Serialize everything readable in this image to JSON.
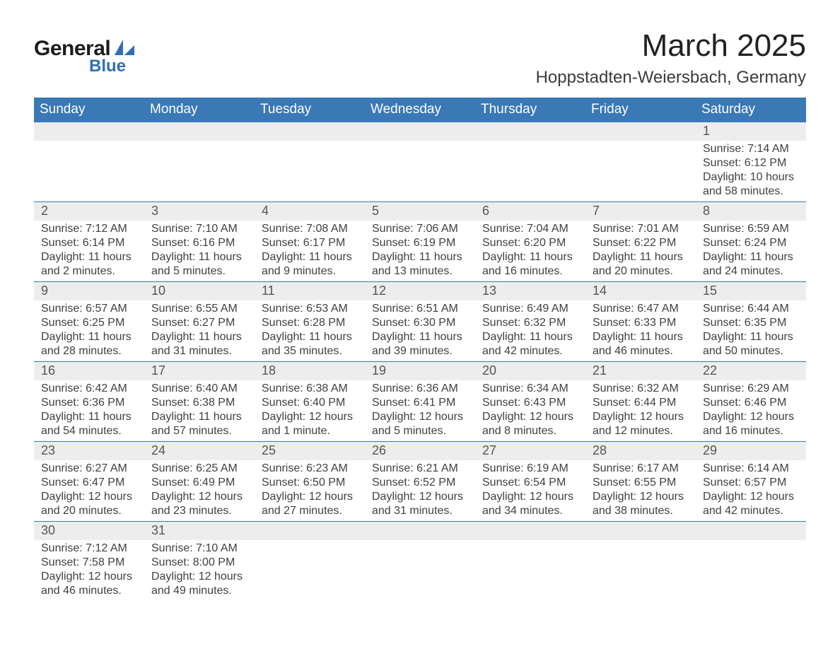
{
  "brand": {
    "name_main": "General",
    "name_accent": "Blue",
    "accent_color": "#2f6fb3",
    "text_color": "#1c1c1c"
  },
  "header": {
    "month_title": "March 2025",
    "location": "Hoppstadten-Weiersbach, Germany"
  },
  "colors": {
    "header_bg": "#3a78b6",
    "header_text": "#ffffff",
    "daynum_bg": "#ededed",
    "body_text": "#404040",
    "page_bg": "#ffffff",
    "rule": "#3a78b6"
  },
  "typography": {
    "month_title_fontsize": 44,
    "location_fontsize": 24,
    "weekday_fontsize": 19,
    "daynum_fontsize": 18,
    "detail_fontsize": 16,
    "font_family": "Arial"
  },
  "weekdays": [
    "Sunday",
    "Monday",
    "Tuesday",
    "Wednesday",
    "Thursday",
    "Friday",
    "Saturday"
  ],
  "weeks": [
    [
      null,
      null,
      null,
      null,
      null,
      null,
      {
        "n": "1",
        "sunrise": "Sunrise: 7:14 AM",
        "sunset": "Sunset: 6:12 PM",
        "d1": "Daylight: 10 hours",
        "d2": "and 58 minutes."
      }
    ],
    [
      {
        "n": "2",
        "sunrise": "Sunrise: 7:12 AM",
        "sunset": "Sunset: 6:14 PM",
        "d1": "Daylight: 11 hours",
        "d2": "and 2 minutes."
      },
      {
        "n": "3",
        "sunrise": "Sunrise: 7:10 AM",
        "sunset": "Sunset: 6:16 PM",
        "d1": "Daylight: 11 hours",
        "d2": "and 5 minutes."
      },
      {
        "n": "4",
        "sunrise": "Sunrise: 7:08 AM",
        "sunset": "Sunset: 6:17 PM",
        "d1": "Daylight: 11 hours",
        "d2": "and 9 minutes."
      },
      {
        "n": "5",
        "sunrise": "Sunrise: 7:06 AM",
        "sunset": "Sunset: 6:19 PM",
        "d1": "Daylight: 11 hours",
        "d2": "and 13 minutes."
      },
      {
        "n": "6",
        "sunrise": "Sunrise: 7:04 AM",
        "sunset": "Sunset: 6:20 PM",
        "d1": "Daylight: 11 hours",
        "d2": "and 16 minutes."
      },
      {
        "n": "7",
        "sunrise": "Sunrise: 7:01 AM",
        "sunset": "Sunset: 6:22 PM",
        "d1": "Daylight: 11 hours",
        "d2": "and 20 minutes."
      },
      {
        "n": "8",
        "sunrise": "Sunrise: 6:59 AM",
        "sunset": "Sunset: 6:24 PM",
        "d1": "Daylight: 11 hours",
        "d2": "and 24 minutes."
      }
    ],
    [
      {
        "n": "9",
        "sunrise": "Sunrise: 6:57 AM",
        "sunset": "Sunset: 6:25 PM",
        "d1": "Daylight: 11 hours",
        "d2": "and 28 minutes."
      },
      {
        "n": "10",
        "sunrise": "Sunrise: 6:55 AM",
        "sunset": "Sunset: 6:27 PM",
        "d1": "Daylight: 11 hours",
        "d2": "and 31 minutes."
      },
      {
        "n": "11",
        "sunrise": "Sunrise: 6:53 AM",
        "sunset": "Sunset: 6:28 PM",
        "d1": "Daylight: 11 hours",
        "d2": "and 35 minutes."
      },
      {
        "n": "12",
        "sunrise": "Sunrise: 6:51 AM",
        "sunset": "Sunset: 6:30 PM",
        "d1": "Daylight: 11 hours",
        "d2": "and 39 minutes."
      },
      {
        "n": "13",
        "sunrise": "Sunrise: 6:49 AM",
        "sunset": "Sunset: 6:32 PM",
        "d1": "Daylight: 11 hours",
        "d2": "and 42 minutes."
      },
      {
        "n": "14",
        "sunrise": "Sunrise: 6:47 AM",
        "sunset": "Sunset: 6:33 PM",
        "d1": "Daylight: 11 hours",
        "d2": "and 46 minutes."
      },
      {
        "n": "15",
        "sunrise": "Sunrise: 6:44 AM",
        "sunset": "Sunset: 6:35 PM",
        "d1": "Daylight: 11 hours",
        "d2": "and 50 minutes."
      }
    ],
    [
      {
        "n": "16",
        "sunrise": "Sunrise: 6:42 AM",
        "sunset": "Sunset: 6:36 PM",
        "d1": "Daylight: 11 hours",
        "d2": "and 54 minutes."
      },
      {
        "n": "17",
        "sunrise": "Sunrise: 6:40 AM",
        "sunset": "Sunset: 6:38 PM",
        "d1": "Daylight: 11 hours",
        "d2": "and 57 minutes."
      },
      {
        "n": "18",
        "sunrise": "Sunrise: 6:38 AM",
        "sunset": "Sunset: 6:40 PM",
        "d1": "Daylight: 12 hours",
        "d2": "and 1 minute."
      },
      {
        "n": "19",
        "sunrise": "Sunrise: 6:36 AM",
        "sunset": "Sunset: 6:41 PM",
        "d1": "Daylight: 12 hours",
        "d2": "and 5 minutes."
      },
      {
        "n": "20",
        "sunrise": "Sunrise: 6:34 AM",
        "sunset": "Sunset: 6:43 PM",
        "d1": "Daylight: 12 hours",
        "d2": "and 8 minutes."
      },
      {
        "n": "21",
        "sunrise": "Sunrise: 6:32 AM",
        "sunset": "Sunset: 6:44 PM",
        "d1": "Daylight: 12 hours",
        "d2": "and 12 minutes."
      },
      {
        "n": "22",
        "sunrise": "Sunrise: 6:29 AM",
        "sunset": "Sunset: 6:46 PM",
        "d1": "Daylight: 12 hours",
        "d2": "and 16 minutes."
      }
    ],
    [
      {
        "n": "23",
        "sunrise": "Sunrise: 6:27 AM",
        "sunset": "Sunset: 6:47 PM",
        "d1": "Daylight: 12 hours",
        "d2": "and 20 minutes."
      },
      {
        "n": "24",
        "sunrise": "Sunrise: 6:25 AM",
        "sunset": "Sunset: 6:49 PM",
        "d1": "Daylight: 12 hours",
        "d2": "and 23 minutes."
      },
      {
        "n": "25",
        "sunrise": "Sunrise: 6:23 AM",
        "sunset": "Sunset: 6:50 PM",
        "d1": "Daylight: 12 hours",
        "d2": "and 27 minutes."
      },
      {
        "n": "26",
        "sunrise": "Sunrise: 6:21 AM",
        "sunset": "Sunset: 6:52 PM",
        "d1": "Daylight: 12 hours",
        "d2": "and 31 minutes."
      },
      {
        "n": "27",
        "sunrise": "Sunrise: 6:19 AM",
        "sunset": "Sunset: 6:54 PM",
        "d1": "Daylight: 12 hours",
        "d2": "and 34 minutes."
      },
      {
        "n": "28",
        "sunrise": "Sunrise: 6:17 AM",
        "sunset": "Sunset: 6:55 PM",
        "d1": "Daylight: 12 hours",
        "d2": "and 38 minutes."
      },
      {
        "n": "29",
        "sunrise": "Sunrise: 6:14 AM",
        "sunset": "Sunset: 6:57 PM",
        "d1": "Daylight: 12 hours",
        "d2": "and 42 minutes."
      }
    ],
    [
      {
        "n": "30",
        "sunrise": "Sunrise: 7:12 AM",
        "sunset": "Sunset: 7:58 PM",
        "d1": "Daylight: 12 hours",
        "d2": "and 46 minutes."
      },
      {
        "n": "31",
        "sunrise": "Sunrise: 7:10 AM",
        "sunset": "Sunset: 8:00 PM",
        "d1": "Daylight: 12 hours",
        "d2": "and 49 minutes."
      },
      null,
      null,
      null,
      null,
      null
    ]
  ]
}
